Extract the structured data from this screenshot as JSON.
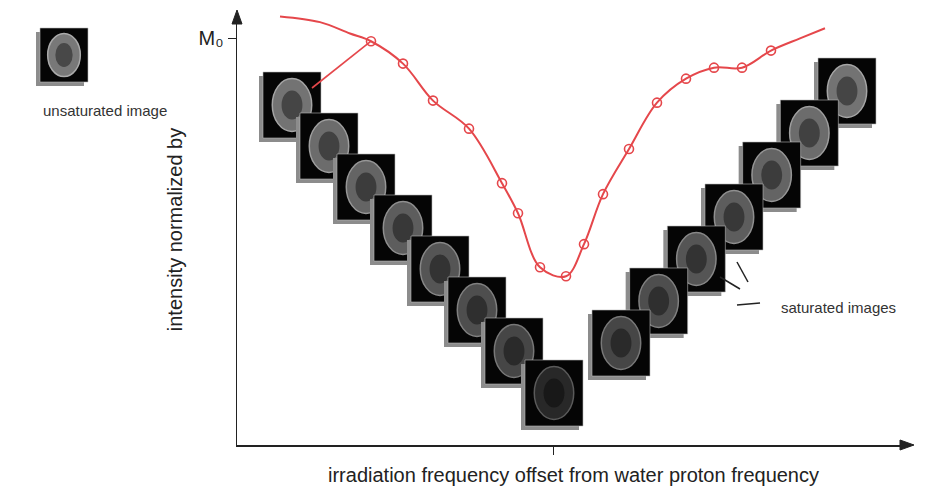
{
  "chart_data": {
    "type": "scatter",
    "xlabel": "irradiation frequency offset from water proton frequency",
    "ylabel": "intensity normalized by",
    "xlim": [
      -6.32,
      7.14
    ],
    "ylim": [
      0,
      1.06
    ],
    "xticks": [
      0
    ],
    "yticks": [
      {
        "value": 1,
        "label": "M₀"
      }
    ],
    "tick_labels": "y",
    "grid": false,
    "series": [
      {
        "type": "line",
        "line_style": "spline",
        "color": "#e5474b",
        "x": [
          -5.46,
          -4.66,
          -4.06,
          -3.64,
          -3.0,
          -2.4,
          -1.68,
          -1.02,
          -0.7,
          -0.26,
          0.26,
          0.62,
          1.0,
          1.52,
          2.08,
          2.66,
          3.22,
          3.78,
          4.36,
          4.94,
          5.44
        ],
        "values": [
          1.054,
          1.04,
          1.012,
          0.993,
          0.938,
          0.847,
          0.778,
          0.644,
          0.57,
          0.437,
          0.415,
          0.494,
          0.617,
          0.728,
          0.842,
          0.901,
          0.928,
          0.928,
          0.97,
          1.0,
          1.025
        ]
      },
      {
        "type": "scatter",
        "marker": "open circle",
        "color": "#e5474b",
        "x": [
          -3.64,
          -3.0,
          -2.4,
          -1.68,
          -1.02,
          -0.7,
          -0.26,
          0.26,
          0.62,
          1.0,
          1.52,
          2.08,
          2.66,
          3.22,
          3.78,
          4.36
        ],
        "values": [
          0.993,
          0.938,
          0.847,
          0.778,
          0.644,
          0.57,
          0.437,
          0.415,
          0.494,
          0.617,
          0.728,
          0.842,
          0.901,
          0.928,
          0.928,
          0.97
        ]
      }
    ],
    "annotations": [
      "unsaturated image",
      "saturated images"
    ]
  }
}
